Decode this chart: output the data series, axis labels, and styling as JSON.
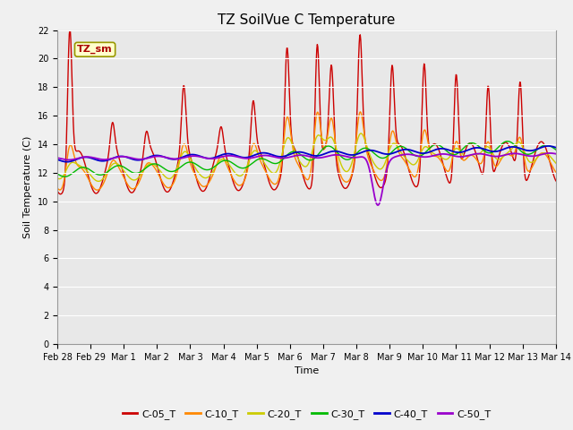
{
  "title": "TZ SoilVue C Temperature",
  "ylabel": "Soil Temperature (C)",
  "xlabel": "Time",
  "ylim": [
    0,
    22
  ],
  "yticks": [
    0,
    2,
    4,
    6,
    8,
    10,
    12,
    14,
    16,
    18,
    20,
    22
  ],
  "plot_bg": "#e8e8e8",
  "fig_bg": "#f0f0f0",
  "annotation_text": "TZ_sm",
  "legend_labels": [
    "C-05_T",
    "C-10_T",
    "C-20_T",
    "C-30_T",
    "C-40_T",
    "C-50_T"
  ],
  "line_colors": [
    "#cc0000",
    "#ff8800",
    "#cccc00",
    "#00bb00",
    "#0000cc",
    "#9900cc"
  ],
  "line_widths": [
    1.0,
    1.0,
    1.0,
    1.0,
    1.3,
    1.3
  ],
  "title_fontsize": 11,
  "axis_fontsize": 8,
  "tick_fontsize": 7
}
